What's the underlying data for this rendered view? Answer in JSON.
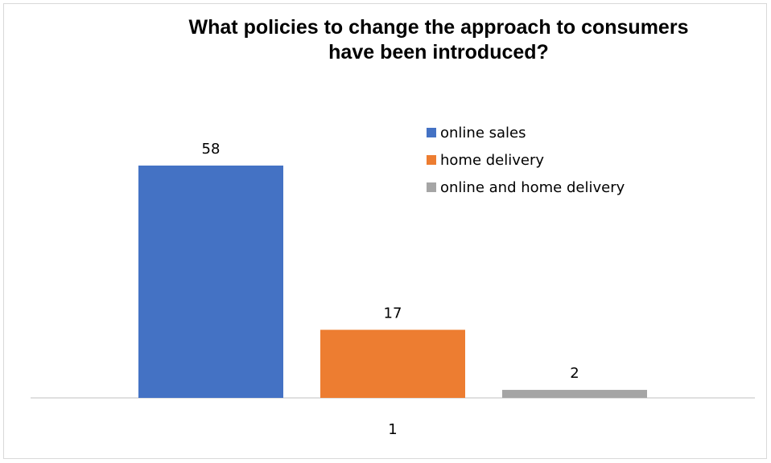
{
  "chart_data": {
    "type": "bar",
    "title": "What policies to change the approach to consumers have been introduced?",
    "title_lines": [
      "What policies to change the approach to consumers",
      "have been introduced?"
    ],
    "categories": [
      "1"
    ],
    "series": [
      {
        "name": "online sales",
        "values": [
          58
        ],
        "color": "#4472c4"
      },
      {
        "name": "home delivery",
        "values": [
          17
        ],
        "color": "#ed7d31"
      },
      {
        "name": "online and home delivery",
        "values": [
          2
        ],
        "color": "#a5a5a5"
      }
    ],
    "ylim": [
      0,
      60
    ],
    "grid": false,
    "legend": "top-right",
    "data_labels": true
  }
}
